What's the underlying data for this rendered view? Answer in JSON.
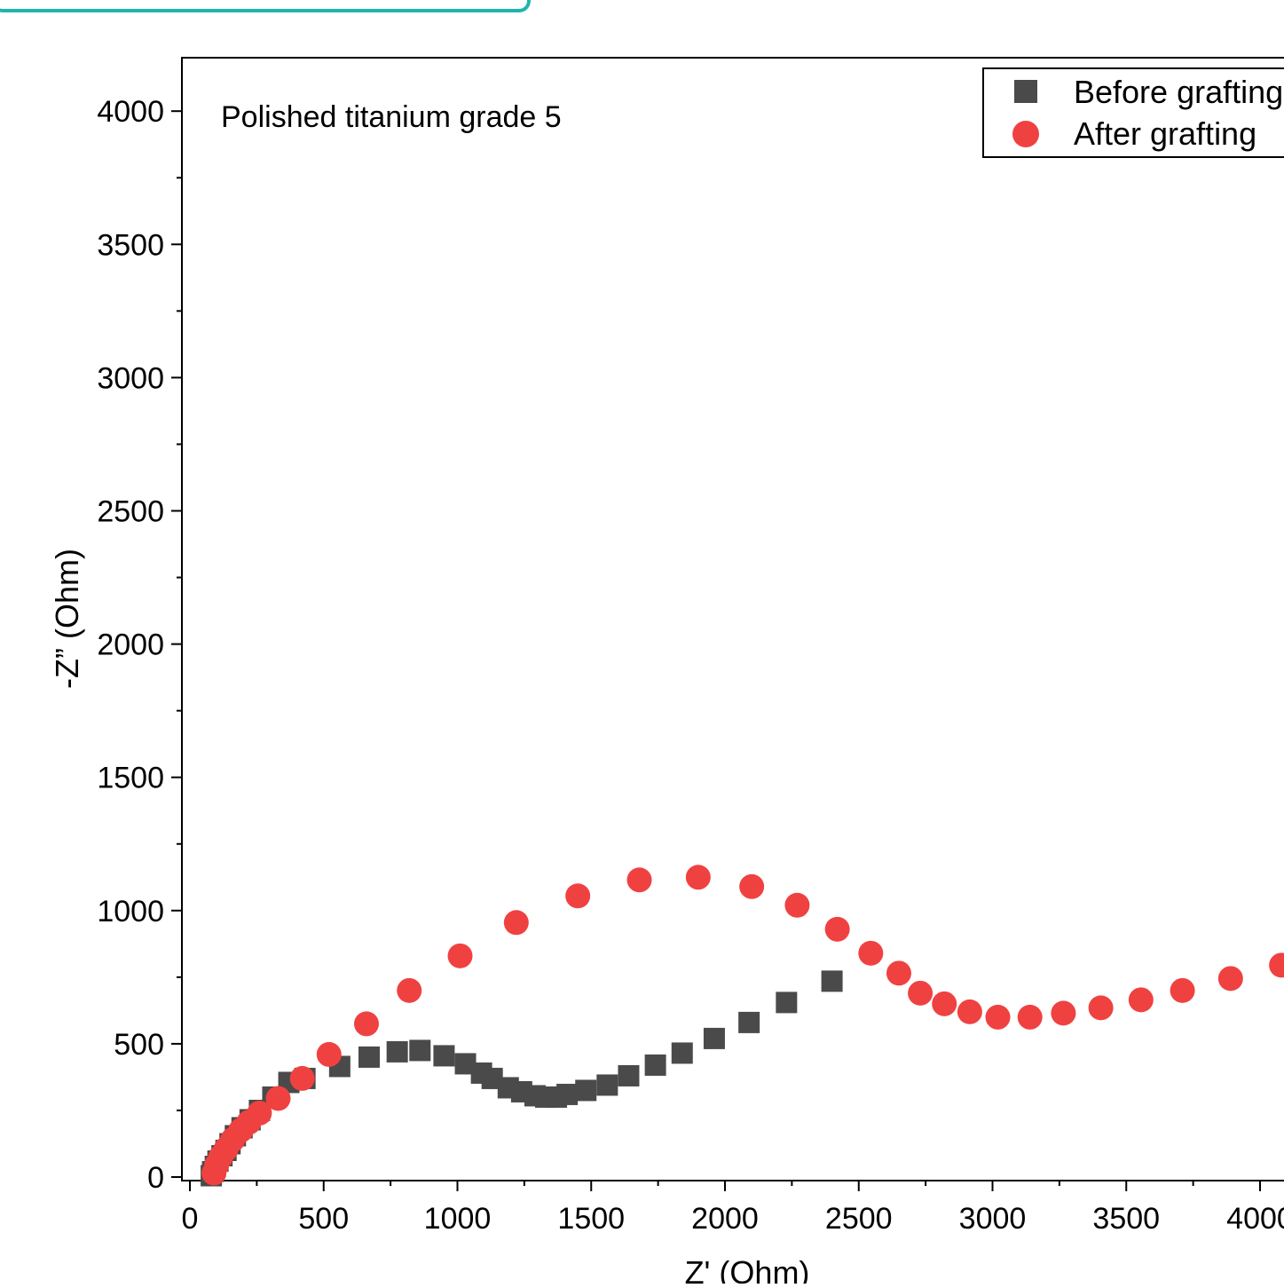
{
  "chart_data": {
    "type": "scatter",
    "annotation": "Polished titanium grade 5",
    "xlabel": "Z' (Ohm)",
    "ylabel": "-Z” (Ohm)",
    "xlim": [
      -20,
      4100
    ],
    "ylim": [
      -20,
      4200
    ],
    "xticks": [
      0,
      500,
      1000,
      1500,
      2000,
      2500,
      3000,
      3500,
      4000
    ],
    "yticks": [
      0,
      500,
      1000,
      1500,
      2000,
      2500,
      3000,
      3500,
      4000
    ],
    "legend_position": "top-right",
    "grid": false,
    "series": [
      {
        "name": "Before grafting",
        "marker": "square",
        "color": "#4a4a4a",
        "points": [
          [
            80,
            5
          ],
          [
            85,
            20
          ],
          [
            95,
            40
          ],
          [
            105,
            60
          ],
          [
            120,
            80
          ],
          [
            135,
            100
          ],
          [
            150,
            125
          ],
          [
            170,
            155
          ],
          [
            195,
            185
          ],
          [
            225,
            215
          ],
          [
            260,
            250
          ],
          [
            310,
            300
          ],
          [
            370,
            355
          ],
          [
            430,
            370
          ],
          [
            560,
            415
          ],
          [
            670,
            450
          ],
          [
            775,
            470
          ],
          [
            860,
            475
          ],
          [
            950,
            455
          ],
          [
            1030,
            425
          ],
          [
            1090,
            390
          ],
          [
            1130,
            370
          ],
          [
            1190,
            335
          ],
          [
            1240,
            320
          ],
          [
            1290,
            305
          ],
          [
            1330,
            300
          ],
          [
            1370,
            300
          ],
          [
            1410,
            310
          ],
          [
            1480,
            325
          ],
          [
            1560,
            345
          ],
          [
            1640,
            380
          ],
          [
            1740,
            420
          ],
          [
            1840,
            465
          ],
          [
            1960,
            520
          ],
          [
            2090,
            580
          ],
          [
            2230,
            655
          ],
          [
            2400,
            735
          ]
        ]
      },
      {
        "name": "After grafting",
        "marker": "circle",
        "color": "#f04141",
        "points": [
          [
            90,
            15
          ],
          [
            100,
            45
          ],
          [
            115,
            75
          ],
          [
            135,
            105
          ],
          [
            160,
            140
          ],
          [
            190,
            175
          ],
          [
            220,
            205
          ],
          [
            260,
            240
          ],
          [
            330,
            295
          ],
          [
            420,
            370
          ],
          [
            520,
            460
          ],
          [
            660,
            575
          ],
          [
            820,
            700
          ],
          [
            1010,
            830
          ],
          [
            1220,
            955
          ],
          [
            1450,
            1055
          ],
          [
            1680,
            1115
          ],
          [
            1900,
            1125
          ],
          [
            2100,
            1090
          ],
          [
            2270,
            1020
          ],
          [
            2420,
            930
          ],
          [
            2545,
            840
          ],
          [
            2650,
            765
          ],
          [
            2730,
            690
          ],
          [
            2820,
            650
          ],
          [
            2915,
            620
          ],
          [
            3020,
            600
          ],
          [
            3140,
            600
          ],
          [
            3265,
            615
          ],
          [
            3405,
            635
          ],
          [
            3555,
            665
          ],
          [
            3710,
            700
          ],
          [
            3890,
            745
          ],
          [
            4080,
            795
          ]
        ]
      }
    ]
  }
}
